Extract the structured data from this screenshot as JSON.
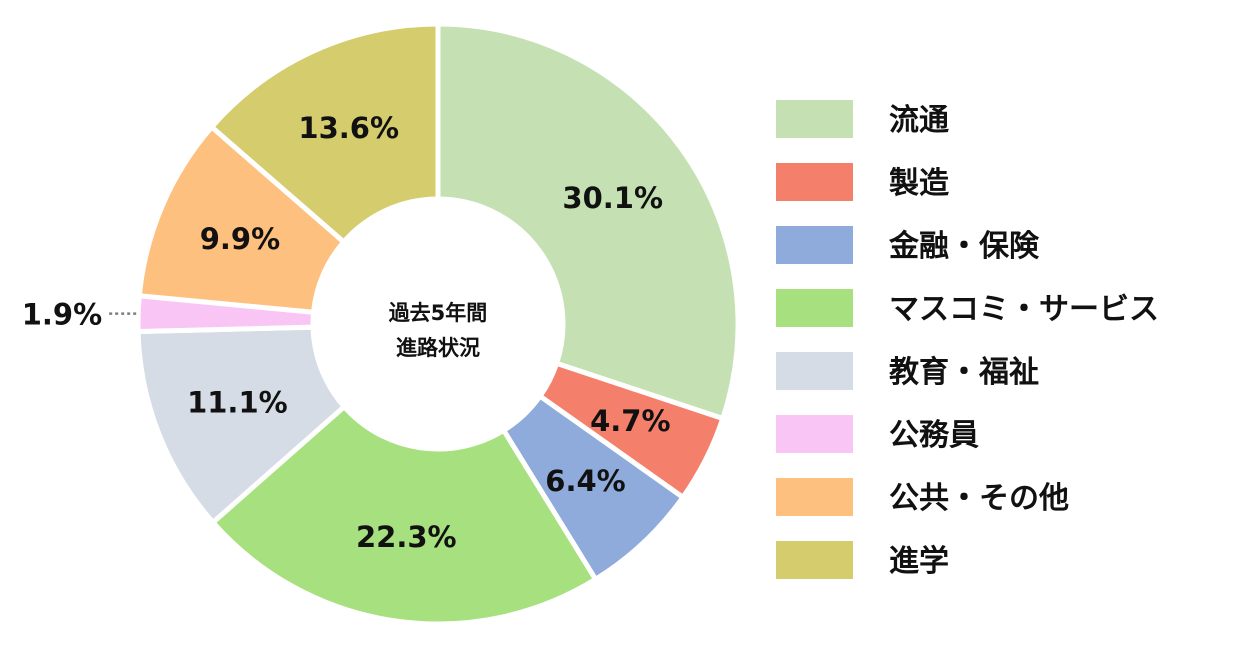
{
  "chart_data": {
    "type": "pie",
    "style": "donut",
    "center_text": [
      "過去5年間",
      "進路状況"
    ],
    "categories": [
      "流通",
      "製造",
      "金融・保険",
      "マスコミ・サービス",
      "教育・福祉",
      "公務員",
      "公共・その他",
      "進学"
    ],
    "values": [
      30.1,
      4.7,
      6.4,
      22.3,
      11.1,
      1.9,
      9.9,
      13.6
    ],
    "value_labels": [
      "30.1%",
      "4.7%",
      "6.4%",
      "22.3%",
      "11.1%",
      "1.9%",
      "9.9%",
      "13.6%"
    ],
    "legend_labels": [
      "流通",
      "製造",
      "金融・保険",
      "マスコミ・サービス",
      "教育・福祉",
      "公務員",
      "公共・その他",
      "進学"
    ],
    "colors": [
      "#c5e0b3",
      "#f4806b",
      "#8fabdc",
      "#a6e07f",
      "#d6dce6",
      "#f9c5f5",
      "#fec07f",
      "#d4cc6d"
    ],
    "legend_position": "right",
    "start_angle": "12 o'clock",
    "direction": "clockwise"
  }
}
